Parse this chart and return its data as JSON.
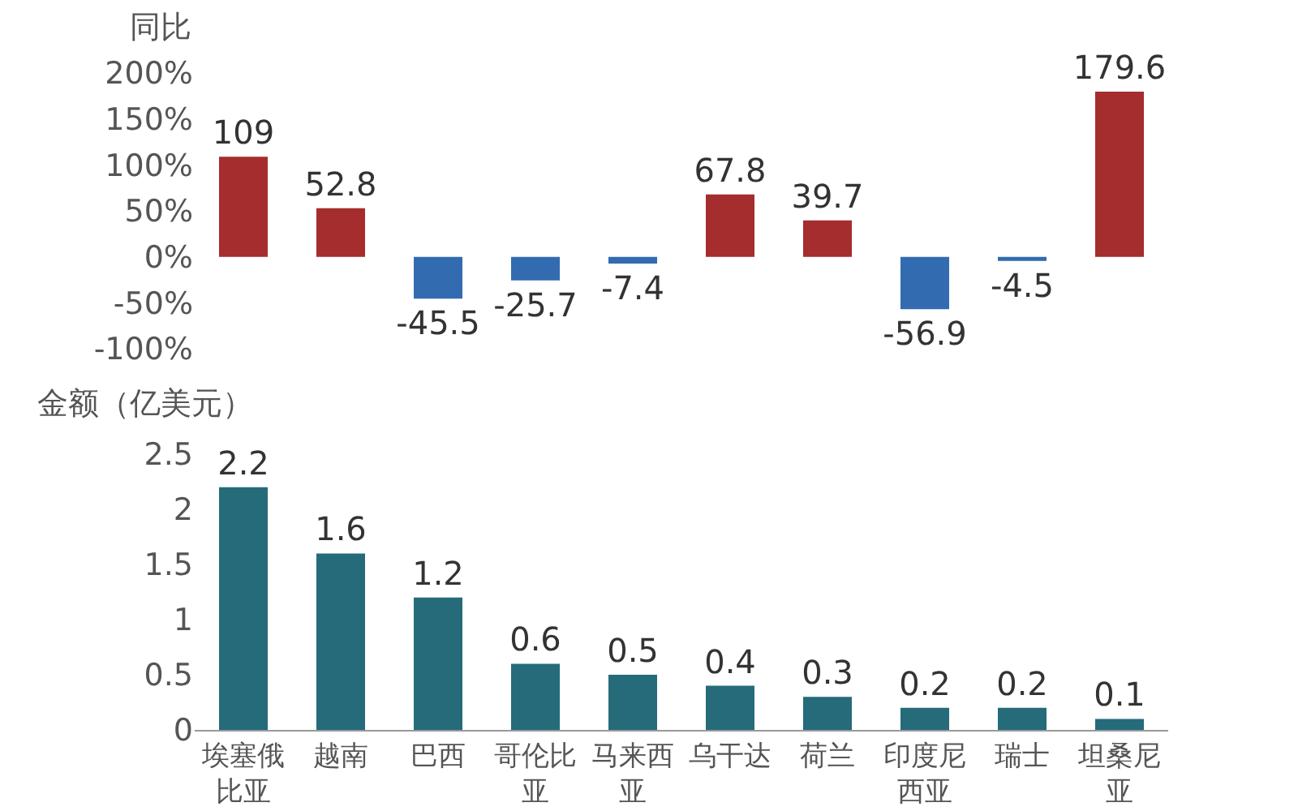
{
  "chart_data": [
    {
      "type": "bar",
      "ylabel": "同比",
      "categories": [
        "埃塞俄比亚",
        "越南",
        "巴西",
        "哥伦比亚",
        "马来西亚",
        "乌干达",
        "荷兰",
        "印度尼西亚",
        "瑞士",
        "坦桑尼亚"
      ],
      "values": [
        109,
        52.8,
        -45.5,
        -25.7,
        -7.4,
        67.8,
        39.7,
        -56.9,
        -4.5,
        179.6
      ],
      "colors": [
        "#a52d2d",
        "#a52d2d",
        "#336bb0",
        "#336bb0",
        "#336bb0",
        "#a52d2d",
        "#a52d2d",
        "#336bb0",
        "#336bb0",
        "#a52d2d"
      ],
      "ylim": [
        -100,
        200
      ],
      "yticks": [
        {
          "value": -100,
          "label": "-100%"
        },
        {
          "value": -50,
          "label": "-50%"
        },
        {
          "value": 0,
          "label": "0%"
        },
        {
          "value": 50,
          "label": "50%"
        },
        {
          "value": 100,
          "label": "100%"
        },
        {
          "value": 150,
          "label": "150%"
        },
        {
          "value": 200,
          "label": "200%"
        }
      ],
      "tick_labels": "y",
      "data_labels": true,
      "grid": false,
      "legend": false
    },
    {
      "type": "bar",
      "ylabel": "金额（亿美元）",
      "categories": [
        "埃塞俄比亚",
        "越南",
        "巴西",
        "哥伦比亚",
        "马来西亚",
        "乌干达",
        "荷兰",
        "印度尼西亚",
        "瑞士",
        "坦桑尼亚"
      ],
      "values": [
        2.2,
        1.6,
        1.2,
        0.6,
        0.5,
        0.4,
        0.3,
        0.2,
        0.2,
        0.1
      ],
      "color": "#256b7a",
      "ylim": [
        0,
        2.5
      ],
      "yticks": [
        0,
        0.5,
        1,
        1.5,
        2,
        2.5
      ],
      "data_labels": true,
      "grid": false,
      "legend": false
    }
  ]
}
